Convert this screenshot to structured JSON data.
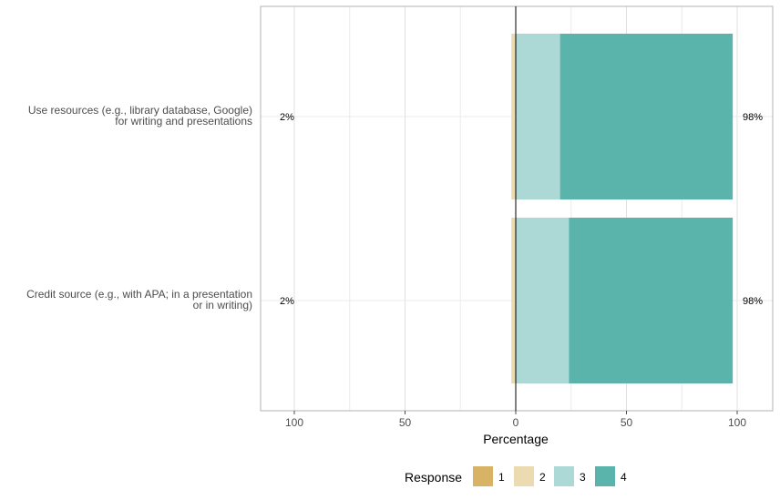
{
  "chart_data": {
    "type": "bar",
    "orientation": "horizontal-diverging",
    "title": "",
    "xlabel": "Percentage",
    "ylabel": "",
    "xlim": [
      -100,
      100
    ],
    "x_ticks": [
      -100,
      -50,
      0,
      50,
      100
    ],
    "x_tick_labels": [
      "100",
      "50",
      "0",
      "50",
      "100"
    ],
    "grid": true,
    "legend": {
      "title": "Response",
      "position": "bottom",
      "entries": [
        "1",
        "2",
        "3",
        "4"
      ]
    },
    "colors": {
      "1": "#d9b365",
      "2": "#ecdbb0",
      "3": "#acd9d6",
      "4": "#5ab4ac"
    },
    "categories": [
      {
        "label_lines": [
          "Use resources (e.g., library database, Google)",
          "for writing and presentations"
        ],
        "low_pct_label": "2%",
        "high_pct_label": "98%"
      },
      {
        "label_lines": [
          "Credit source (e.g., with APA; in a presentation",
          "or in writing)"
        ],
        "low_pct_label": "2%",
        "high_pct_label": "98%"
      }
    ],
    "series": [
      {
        "name": "1",
        "values": [
          0,
          0
        ]
      },
      {
        "name": "2",
        "values": [
          2,
          2
        ]
      },
      {
        "name": "3",
        "values": [
          20,
          24
        ]
      },
      {
        "name": "4",
        "values": [
          78,
          74
        ]
      }
    ]
  }
}
